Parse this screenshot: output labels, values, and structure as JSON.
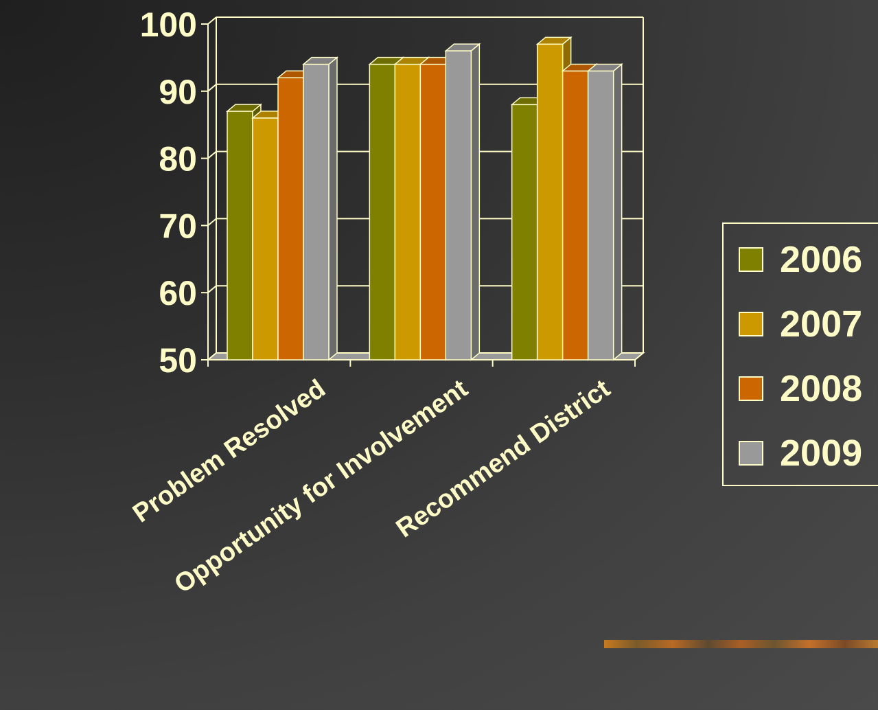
{
  "chart_data": {
    "type": "bar",
    "title": "",
    "xlabel": "",
    "ylabel": "",
    "ylim": [
      50,
      100
    ],
    "yticks": [
      50,
      60,
      70,
      80,
      90,
      100
    ],
    "categories": [
      "Problem Resolved",
      "Opportunity for Involvement",
      "Recommend District"
    ],
    "series": [
      {
        "name": "2006",
        "color": "#808000",
        "values": [
          87,
          94,
          88
        ]
      },
      {
        "name": "2007",
        "color": "#cc9900",
        "values": [
          86,
          94,
          97
        ]
      },
      {
        "name": "2008",
        "color": "#cc6600",
        "values": [
          92,
          94,
          93
        ]
      },
      {
        "name": "2009",
        "color": "#999999",
        "values": [
          94,
          96,
          93
        ]
      }
    ],
    "grid": true,
    "style": "3d",
    "legend_position": "right"
  },
  "colors": {
    "text": "#fffcc8",
    "axis": "#fffcc8"
  },
  "icons": [
    "decorative-strip"
  ]
}
